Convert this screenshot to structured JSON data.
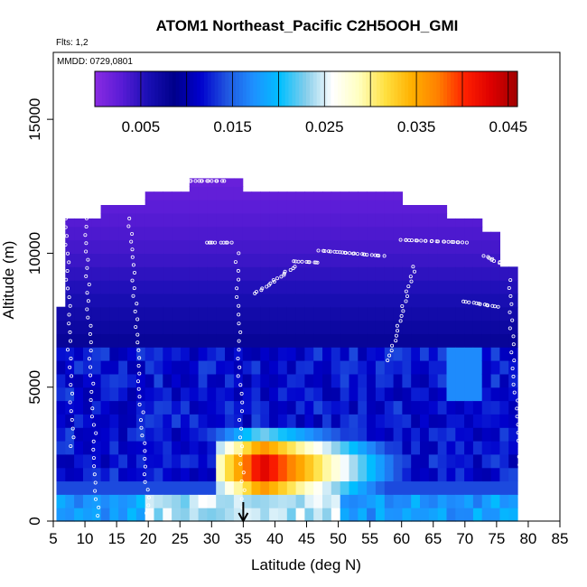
{
  "chart_data": {
    "type": "heatmap",
    "title": "ATOM1 Northeast_Pacific C2H5OOH_GMI",
    "flights_label": "Flts: 1,2",
    "mmdd_label": "MMDD: 0729,0801",
    "xlabel": "Latitude (deg N)",
    "ylabel": "Altitude (m)",
    "xlim": [
      5,
      85
    ],
    "ylim": [
      0,
      17500
    ],
    "x_ticks": [
      "5",
      "10",
      "15",
      "20",
      "25",
      "30",
      "35",
      "40",
      "45",
      "50",
      "55",
      "60",
      "65",
      "70",
      "75",
      "80",
      "85"
    ],
    "y_ticks": [
      "0",
      "5000",
      "10000",
      "15000"
    ],
    "colorbar": {
      "range": [
        0.0,
        0.046
      ],
      "tick_labels": [
        "0.005",
        "0.015",
        "0.025",
        "0.035",
        "0.045"
      ],
      "tick_values": [
        0.005,
        0.015,
        0.025,
        0.035,
        0.045
      ],
      "colors": [
        "#8a2be2",
        "#5a1cd6",
        "#1a0fb5",
        "#00008b",
        "#0000cd",
        "#2055e0",
        "#1e90ff",
        "#00bfff",
        "#87ceeb",
        "#ffffff",
        "#ffffc0",
        "#ffe040",
        "#ffb000",
        "#ff7f00",
        "#ff2000",
        "#dd0000",
        "#a00000"
      ]
    },
    "marker_latitude": 35,
    "column_tops": [
      [
        5.5,
        8000
      ],
      [
        6.5,
        9500
      ],
      [
        7,
        11300
      ],
      [
        10,
        11300
      ],
      [
        13,
        11800
      ],
      [
        19,
        12000
      ],
      [
        20,
        12300
      ],
      [
        26,
        12800
      ],
      [
        31,
        12800
      ],
      [
        35,
        12300
      ],
      [
        40,
        12300
      ],
      [
        47,
        12300
      ],
      [
        55,
        12300
      ],
      [
        60,
        11800
      ],
      [
        67,
        11300
      ],
      [
        72,
        10800
      ],
      [
        76,
        9500
      ],
      [
        78,
        7200
      ],
      [
        79,
        5200
      ]
    ],
    "field": {
      "background_level": 0.01,
      "upper_level": 0.004,
      "top_level": 0.002,
      "plume": {
        "lat_center": 38,
        "alt_center": 2000,
        "peak": 0.044,
        "lat_start": 31,
        "lat_end": 70,
        "alt_halfwidth": 1000
      },
      "surface_band": {
        "alt": 700,
        "level": 0.02
      }
    },
    "flight_segments": [
      {
        "lat": [
          26,
          32
        ],
        "alt": [
          12700,
          12700
        ]
      },
      {
        "lat": [
          29,
          33
        ],
        "alt": [
          10400,
          10400
        ]
      },
      {
        "lat": [
          43,
          47
        ],
        "alt": [
          9700,
          9650
        ]
      },
      {
        "lat": [
          47,
          57
        ],
        "alt": [
          10100,
          9900
        ]
      },
      {
        "lat": [
          60,
          70
        ],
        "alt": [
          10500,
          10400
        ]
      },
      {
        "lat": [
          73,
          76
        ],
        "alt": [
          9900,
          9600
        ]
      },
      {
        "lat": [
          70,
          75
        ],
        "alt": [
          8200,
          8000
        ]
      },
      {
        "lat": [
          34,
          35
        ],
        "alt": [
          10000,
          500
        ]
      },
      {
        "lat": [
          37,
          43
        ],
        "alt": [
          8500,
          9500
        ]
      },
      {
        "lat": [
          58,
          62
        ],
        "alt": [
          6000,
          9500
        ]
      },
      {
        "lat": [
          10,
          12
        ],
        "alt": [
          11300,
          200
        ]
      },
      {
        "lat": [
          17,
          20
        ],
        "alt": [
          11300,
          300
        ]
      },
      {
        "lat": [
          7,
          8
        ],
        "alt": [
          11300,
          2800
        ]
      },
      {
        "lat": [
          77,
          79
        ],
        "alt": [
          9000,
          300
        ]
      }
    ]
  }
}
